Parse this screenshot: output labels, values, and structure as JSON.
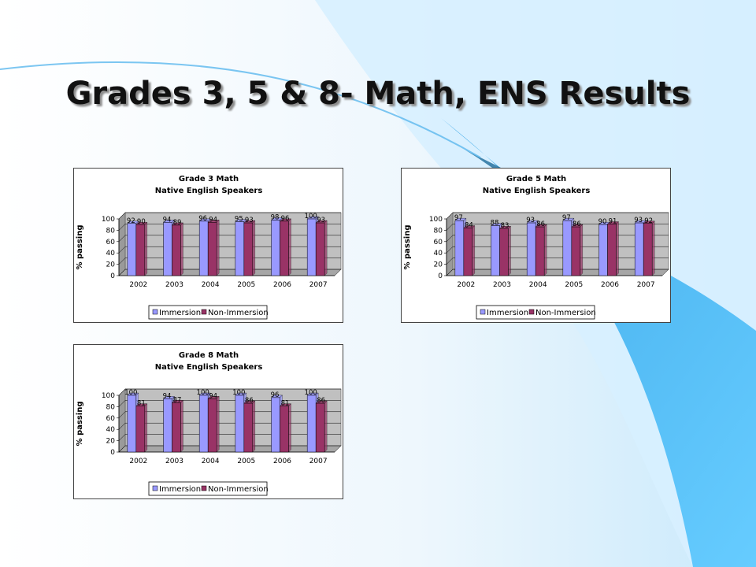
{
  "slide": {
    "title": "Grades 3, 5 & 8- Math, ENS Results"
  },
  "colors": {
    "immersion": "#9999ff",
    "non_immersion": "#993366",
    "plot_bg": "#c0c0c0",
    "accent_blue": "#5bb8ee"
  },
  "chart_data": [
    {
      "type": "bar",
      "title": "Grade 3 Math",
      "subtitle": "Native English Speakers",
      "ylabel": "% passing",
      "xlabel": "",
      "ylim": [
        0,
        100
      ],
      "yticks": [
        0,
        20,
        40,
        60,
        80,
        100
      ],
      "grid": true,
      "legend": "bottom",
      "categories": [
        "2002",
        "2003",
        "2004",
        "2005",
        "2006",
        "2007"
      ],
      "series": [
        {
          "name": "Immersion",
          "values": [
            92,
            94,
            96,
            95,
            98,
            100
          ]
        },
        {
          "name": "Non-Immersion",
          "values": [
            90,
            89,
            94,
            93,
            96,
            93
          ]
        }
      ]
    },
    {
      "type": "bar",
      "title": "Grade 5 Math",
      "subtitle": "Native English Speakers",
      "ylabel": "% passing",
      "xlabel": "",
      "ylim": [
        0,
        100
      ],
      "yticks": [
        0,
        20,
        40,
        60,
        80,
        100
      ],
      "grid": true,
      "legend": "bottom",
      "categories": [
        "2002",
        "2003",
        "2004",
        "2005",
        "2006",
        "2007"
      ],
      "series": [
        {
          "name": "Immersion",
          "values": [
            97,
            88,
            93,
            97,
            90,
            93
          ]
        },
        {
          "name": "Non-Immersion",
          "values": [
            84,
            83,
            86,
            86,
            91,
            92
          ]
        }
      ]
    },
    {
      "type": "bar",
      "title": "Grade 8 Math",
      "subtitle": "Native English Speakers",
      "ylabel": "% passing",
      "xlabel": "",
      "ylim": [
        0,
        100
      ],
      "yticks": [
        0,
        20,
        40,
        60,
        80,
        100
      ],
      "grid": true,
      "legend": "bottom",
      "categories": [
        "2002",
        "2003",
        "2004",
        "2005",
        "2006",
        "2007"
      ],
      "series": [
        {
          "name": "Immersion",
          "values": [
            100,
            94,
            100,
            100,
            96,
            100
          ]
        },
        {
          "name": "Non-Immersion",
          "values": [
            81,
            87,
            94,
            86,
            81,
            86
          ]
        }
      ]
    }
  ]
}
